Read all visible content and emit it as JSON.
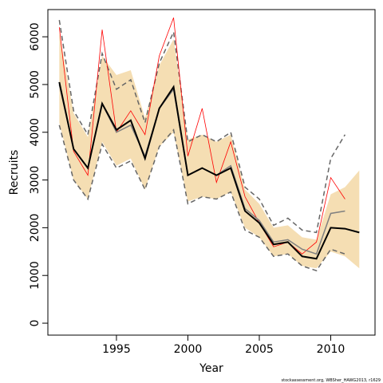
{
  "chart_data": {
    "type": "line",
    "xlabel": "Year",
    "ylabel": "Recruits",
    "footer": "stockassessment.org, WBSher_HAWG2013, r1629",
    "x": [
      1991,
      1992,
      1993,
      1994,
      1995,
      1996,
      1997,
      1998,
      1999,
      2000,
      2001,
      2002,
      2003,
      2004,
      2005,
      2006,
      2007,
      2008,
      2009,
      2010,
      2011,
      2012
    ],
    "xlim": [
      1990.2,
      2013.1
    ],
    "xticks": [
      1995,
      2000,
      2005,
      2010
    ],
    "ylim": [
      -250,
      6570
    ],
    "yticks": [
      0,
      1000,
      2000,
      3000,
      4000,
      5000,
      6000
    ],
    "band": {
      "color": "#f5deb3",
      "upper": [
        6100,
        4400,
        3900,
        5600,
        5200,
        5300,
        4300,
        5400,
        5950,
        3850,
        3950,
        3800,
        3950,
        2800,
        2500,
        2000,
        2050,
        1800,
        1750,
        2700,
        2850,
        3200
      ],
      "lower": [
        4200,
        3000,
        2600,
        3800,
        3300,
        3450,
        2800,
        3700,
        4000,
        2550,
        2650,
        2600,
        2750,
        2000,
        1800,
        1400,
        1450,
        1200,
        1150,
        1500,
        1400,
        1150
      ]
    },
    "series": [
      {
        "color": "#666666",
        "style": "dashed",
        "values": [
          6350,
          4450,
          3950,
          5650,
          4900,
          5100,
          4200,
          5450,
          6100,
          3800,
          3950,
          3800,
          4000,
          2850,
          2600,
          2050,
          2200,
          1950,
          1900,
          3450,
          3950,
          null
        ]
      },
      {
        "color": "#666666",
        "style": "dashed",
        "values": [
          4150,
          3000,
          2600,
          3750,
          3250,
          3400,
          2800,
          3700,
          4050,
          2500,
          2650,
          2600,
          2750,
          1950,
          1800,
          1400,
          1450,
          1200,
          1100,
          1550,
          1450,
          null
        ]
      },
      {
        "color": "#ff0000",
        "style": "solid",
        "width": 0.8,
        "values": [
          6200,
          3600,
          3100,
          6150,
          4000,
          4450,
          3950,
          5600,
          6400,
          3500,
          4500,
          2950,
          3800,
          2650,
          2100,
          1600,
          1700,
          1450,
          1700,
          3050,
          2600,
          null
        ]
      },
      {
        "color": "#808080",
        "style": "solid",
        "width": 1.5,
        "values": [
          5000,
          3650,
          3250,
          4600,
          4000,
          4150,
          3500,
          4500,
          4900,
          3100,
          3250,
          3100,
          3300,
          2400,
          2150,
          1700,
          1750,
          1550,
          1450,
          2300,
          2350,
          null
        ]
      },
      {
        "color": "#000000",
        "style": "solid",
        "width": 2,
        "values": [
          5050,
          3650,
          3250,
          4600,
          4050,
          4250,
          3450,
          4500,
          4950,
          3100,
          3250,
          3100,
          3250,
          2350,
          2100,
          1650,
          1700,
          1400,
          1350,
          2000,
          1980,
          1900
        ]
      }
    ]
  }
}
